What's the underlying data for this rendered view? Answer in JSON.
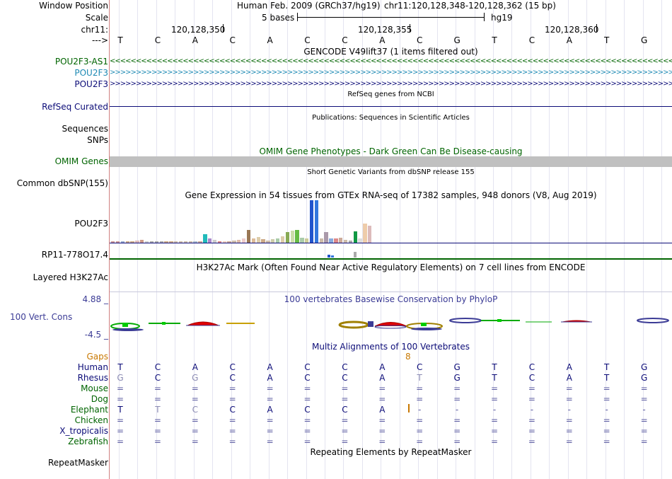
{
  "colors": {
    "green_track": "#006400",
    "blue_track": "#0c5e96",
    "light_blue_track": "#1e8ab4",
    "navy": "#0c0c78",
    "gaps_orange": "#c87800",
    "grey_bar": "#c0c0c0",
    "phylop_blue": "#3c3c96"
  },
  "header": {
    "window_position_label": "Window Position",
    "scale_label": "Scale",
    "chrom_label": "chr11:",
    "strand_label": "--->",
    "assembly_title": "Human Feb. 2009 (GRCh37/hg19)",
    "position": "chr11:120,128,348-120,128,362 (15 bp)",
    "scale_value": "5 bases",
    "assembly_short": "hg19",
    "coord_1": "120,128,350",
    "coord_2": "120,128,355",
    "coord_3": "120,128,360"
  },
  "reference_bases": [
    "T",
    "C",
    "A",
    "C",
    "A",
    "C",
    "C",
    "A",
    "C",
    "G",
    "T",
    "C",
    "A",
    "T",
    "G"
  ],
  "gencode": {
    "title": "GENCODE V49lift37 (1 items filtered out)",
    "tracks": [
      {
        "name": "POU2F3-AS1",
        "arrows": "<<<<<<<<<<<<<<<<<<<<<<<<<<<<<<<<<<<<<<<<<<<<<<<<<<<<<<<<<<<<<<<<<<<<<<<<<<<<<<<<<<<<<<<<<<<<<<<<<<<<<<<<<<<<<<<<<<<<<<<<<<<<<<<<<<<<<<<<<<<<<<<<<<"
      },
      {
        "name": "POU2F3",
        "arrows": ">>>>>>>>>>>>>>>>>>>>>>>>>>>>>>>>>>>>>>>>>>>>>>>>>>>>>>>>>>>>>>>>>>>>>>>>>>>>>>>>>>>>>>>>>>>>>>>>>>>>>>>>>>>>>>>>>>>>>>>>>>>>>>>>>>>>>>>>>>>>>>>>>>>"
      },
      {
        "name": "POU2F3",
        "arrows": ">>>>>>>>>>>>>>>>>>>>>>>>>>>>>>>>>>>>>>>>>>>>>>>>>>>>>>>>>>>>>>>>>>>>>>>>>>>>>>>>>>>>>>>>>>>>>>>>>>>>>>>>>>>>>>>>>>>>>>>>>>>>>>>>>>>>>>>>>>>>>>>>>>>"
      }
    ]
  },
  "refseq": {
    "title": "RefSeq genes from NCBI",
    "label": "RefSeq Curated"
  },
  "publications": {
    "title": "Publications: Sequences in Scientific Articles",
    "label_1": "Sequences",
    "label_2": "SNPs"
  },
  "omim": {
    "title": "OMIM Gene Phenotypes - Dark Green Can Be Disease-causing",
    "label": "OMIM Genes"
  },
  "dbsnp": {
    "title": "Short Genetic Variants from dbSNP release 155",
    "label": "Common dbSNP(155)"
  },
  "gtex": {
    "title": "Gene Expression in 54 tissues from GTEx RNA-seq of 17382 samples, 948 donors (V8, Aug 2019)",
    "label": "POU2F3",
    "label_2": "RP11-778O17.4",
    "tissue_levels": [
      0.03,
      0.03,
      0.02,
      0.03,
      0.03,
      0.05,
      0.06,
      0.03,
      0.02,
      0.03,
      0.02,
      0.02,
      0.02,
      0.03,
      0.02,
      0.03,
      0.03,
      0.02,
      0.02,
      0.2,
      0.1,
      0.06,
      0.03,
      0.04,
      0.02,
      0.05,
      0.06,
      0.1,
      0.3,
      0.1,
      0.14,
      0.08,
      0.05,
      0.09,
      0.1,
      0.15,
      0.25,
      0.28,
      0.3,
      0.12,
      0.1,
      1.0,
      1.0,
      0.1,
      0.25,
      0.1,
      0.1,
      0.12,
      0.06,
      0.05,
      0.26,
      0.1,
      0.45,
      0.4
    ],
    "tissue_colors": [
      "#cc9999",
      "#cc9999",
      "#99aacc",
      "#ccaa88",
      "#ccaa88",
      "#ddbbbb",
      "#cc9988",
      "#cccccc",
      "#aaaaaa",
      "#aaaaaa",
      "#aaaaaa",
      "#ccaa88",
      "#ccaa88",
      "#ccbbaa",
      "#ccbbaa",
      "#ccbbaa",
      "#ccbbaa",
      "#aabbcc",
      "#ccaa99",
      "#22bbbb",
      "#aa88cc",
      "#cccccc",
      "#dd8888",
      "#eeccbb",
      "#ccaa99",
      "#ccbbaa",
      "#ddbbaa",
      "#eecccc",
      "#997755",
      "#ddbb99",
      "#ddccaa",
      "#ccaa88",
      "#ccbbaa",
      "#ccccaa",
      "#aaccaa",
      "#ddccaa",
      "#88aa55",
      "#ccddaa",
      "#66bb44",
      "#aaccaa",
      "#cccc99",
      "#2255cc",
      "#3377dd",
      "#ccbbaa",
      "#aa99aa",
      "#88aadd",
      "#dd8888",
      "#ccaa99",
      "#ccbbaa",
      "#aaaaaa",
      "#119944",
      "#dddddd",
      "#eeccaa",
      "#ddbbbb"
    ]
  },
  "h3k27ac": {
    "title": "H3K27Ac Mark (Often Found Near Active Regulatory Elements) on 7 cell lines from ENCODE",
    "label": "Layered H3K27Ac"
  },
  "phylop": {
    "title": "100 vertebrates Basewise Conservation by PhyloP",
    "label": "100 Vert. Cons",
    "max_label": "4.88 _",
    "min_label": "-4.5 _"
  },
  "multiz": {
    "title": "Multiz Alignments of 100 Vertebrates",
    "gaps_label": "Gaps",
    "gaps_count": "8",
    "species": [
      {
        "name": "Human",
        "color": "#0c0c78",
        "bases": [
          "T",
          "C",
          "A",
          "C",
          "A",
          "C",
          "C",
          "A",
          "C",
          "G",
          "T",
          "C",
          "A",
          "T",
          "G"
        ]
      },
      {
        "name": "Rhesus",
        "color": "#0c0c78",
        "bases": [
          "G",
          "C",
          "G",
          "C",
          "A",
          "C",
          "C",
          "A",
          "T",
          "G",
          "T",
          "C",
          "A",
          "T",
          "G"
        ]
      },
      {
        "name": "Mouse",
        "color": "#006400",
        "bases": [
          "=",
          "=",
          "=",
          "=",
          "=",
          "=",
          "=",
          "=",
          "=",
          "=",
          "=",
          "=",
          "=",
          "=",
          "="
        ]
      },
      {
        "name": "Dog",
        "color": "#006400",
        "bases": [
          "=",
          "=",
          "=",
          "=",
          "=",
          "=",
          "=",
          "=",
          "=",
          "=",
          "=",
          "=",
          "=",
          "=",
          "="
        ]
      },
      {
        "name": "Elephant",
        "color": "#006400",
        "bases": [
          "T",
          "T",
          "C",
          "C",
          "A",
          "C",
          "C",
          "A",
          "-",
          "-",
          "-",
          "-",
          "-",
          "-",
          "-"
        ]
      },
      {
        "name": "Chicken",
        "color": "#006400",
        "bases": [
          "=",
          "=",
          "=",
          "=",
          "=",
          "=",
          "=",
          "=",
          "=",
          "=",
          "=",
          "=",
          "=",
          "=",
          "="
        ]
      },
      {
        "name": "X_tropicalis",
        "color": "#0c0c78",
        "bases": [
          "=",
          "=",
          "=",
          "=",
          "=",
          "=",
          "=",
          "=",
          "=",
          "=",
          "=",
          "=",
          "=",
          "=",
          "="
        ]
      },
      {
        "name": "Zebrafish",
        "color": "#006400",
        "bases": [
          "=",
          "=",
          "=",
          "=",
          "=",
          "=",
          "=",
          "=",
          "=",
          "=",
          "=",
          "=",
          "=",
          "=",
          "="
        ]
      }
    ]
  },
  "repeatmasker": {
    "title": "Repeating Elements by RepeatMasker",
    "label": "RepeatMasker"
  }
}
